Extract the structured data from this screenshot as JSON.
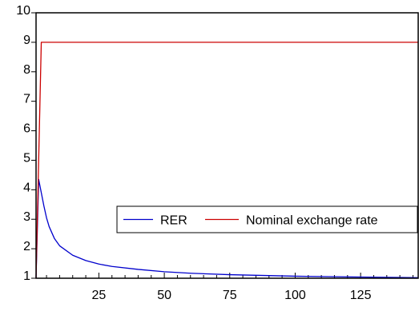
{
  "chart_data": {
    "type": "line",
    "title": "",
    "xlabel": "",
    "ylabel": "",
    "xlim": [
      1,
      147
    ],
    "ylim": [
      1,
      10
    ],
    "grid": false,
    "legend_position": "middle-right",
    "x_ticks": [
      25,
      50,
      75,
      100,
      125
    ],
    "y_ticks": [
      1,
      2,
      3,
      4,
      5,
      6,
      7,
      8,
      9,
      10
    ],
    "series": [
      {
        "name": "RER",
        "color": "#0000cc",
        "x": [
          1,
          2,
          3,
          4,
          5,
          6,
          8,
          10,
          15,
          20,
          25,
          30,
          40,
          50,
          60,
          75,
          100,
          125,
          147
        ],
        "y": [
          1.0,
          4.35,
          3.9,
          3.45,
          3.05,
          2.75,
          2.35,
          2.1,
          1.78,
          1.6,
          1.48,
          1.4,
          1.3,
          1.22,
          1.17,
          1.12,
          1.07,
          1.04,
          1.02
        ]
      },
      {
        "name": "Nominal exchange rate",
        "color": "#cc0000",
        "x": [
          1,
          3,
          147
        ],
        "y": [
          1.0,
          9.0,
          9.0
        ]
      }
    ]
  }
}
